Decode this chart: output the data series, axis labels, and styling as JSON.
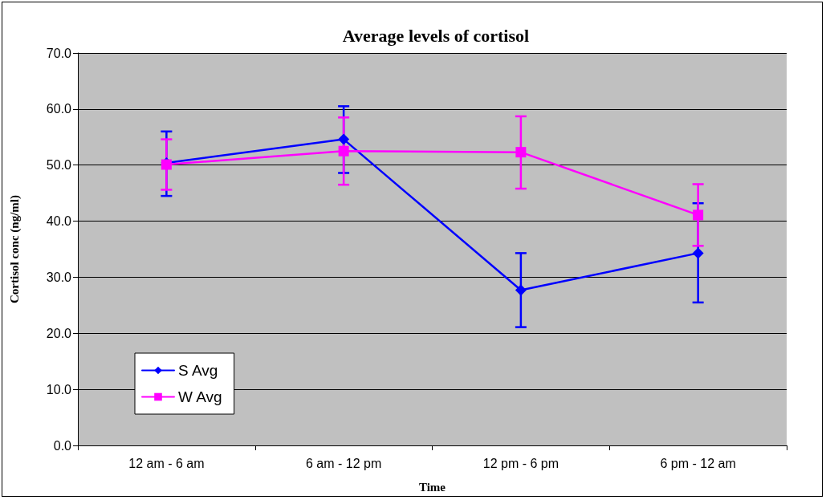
{
  "chart_data": {
    "type": "line",
    "title": "Average levels of cortisol",
    "xlabel": "Time",
    "ylabel": "Cortisol conc (ng/ml)",
    "categories": [
      "12 am - 6 am",
      "6 am - 12 pm",
      "12 pm - 6 pm",
      "6 pm - 12 am"
    ],
    "series": [
      {
        "name": "S Avg",
        "color": "#0000ff",
        "marker": "diamond",
        "values": [
          50.4,
          54.6,
          27.7,
          34.3
        ],
        "errors": [
          [
            44.5,
            56.0
          ],
          [
            48.6,
            60.5
          ],
          [
            21.1,
            34.3
          ],
          [
            25.5,
            43.2
          ]
        ]
      },
      {
        "name": "W Avg",
        "color": "#ff00ff",
        "marker": "square",
        "values": [
          50.1,
          52.5,
          52.3,
          41.1
        ],
        "errors": [
          [
            45.6,
            54.6
          ],
          [
            46.5,
            58.5
          ],
          [
            45.8,
            58.7
          ],
          [
            35.6,
            46.6
          ]
        ]
      }
    ],
    "ylim": [
      0,
      70
    ],
    "yticks": [
      {
        "value": 0,
        "label": "0.0"
      },
      {
        "value": 10,
        "label": "10.0"
      },
      {
        "value": 20,
        "label": "20.0"
      },
      {
        "value": 30,
        "label": "30.0"
      },
      {
        "value": 40,
        "label": "40.0"
      },
      {
        "value": 50,
        "label": "50.0"
      },
      {
        "value": 60,
        "label": "60.0"
      },
      {
        "value": 70,
        "label": "70.0"
      }
    ],
    "grid": "y",
    "legend": "bottom left",
    "line_style": "solid"
  }
}
